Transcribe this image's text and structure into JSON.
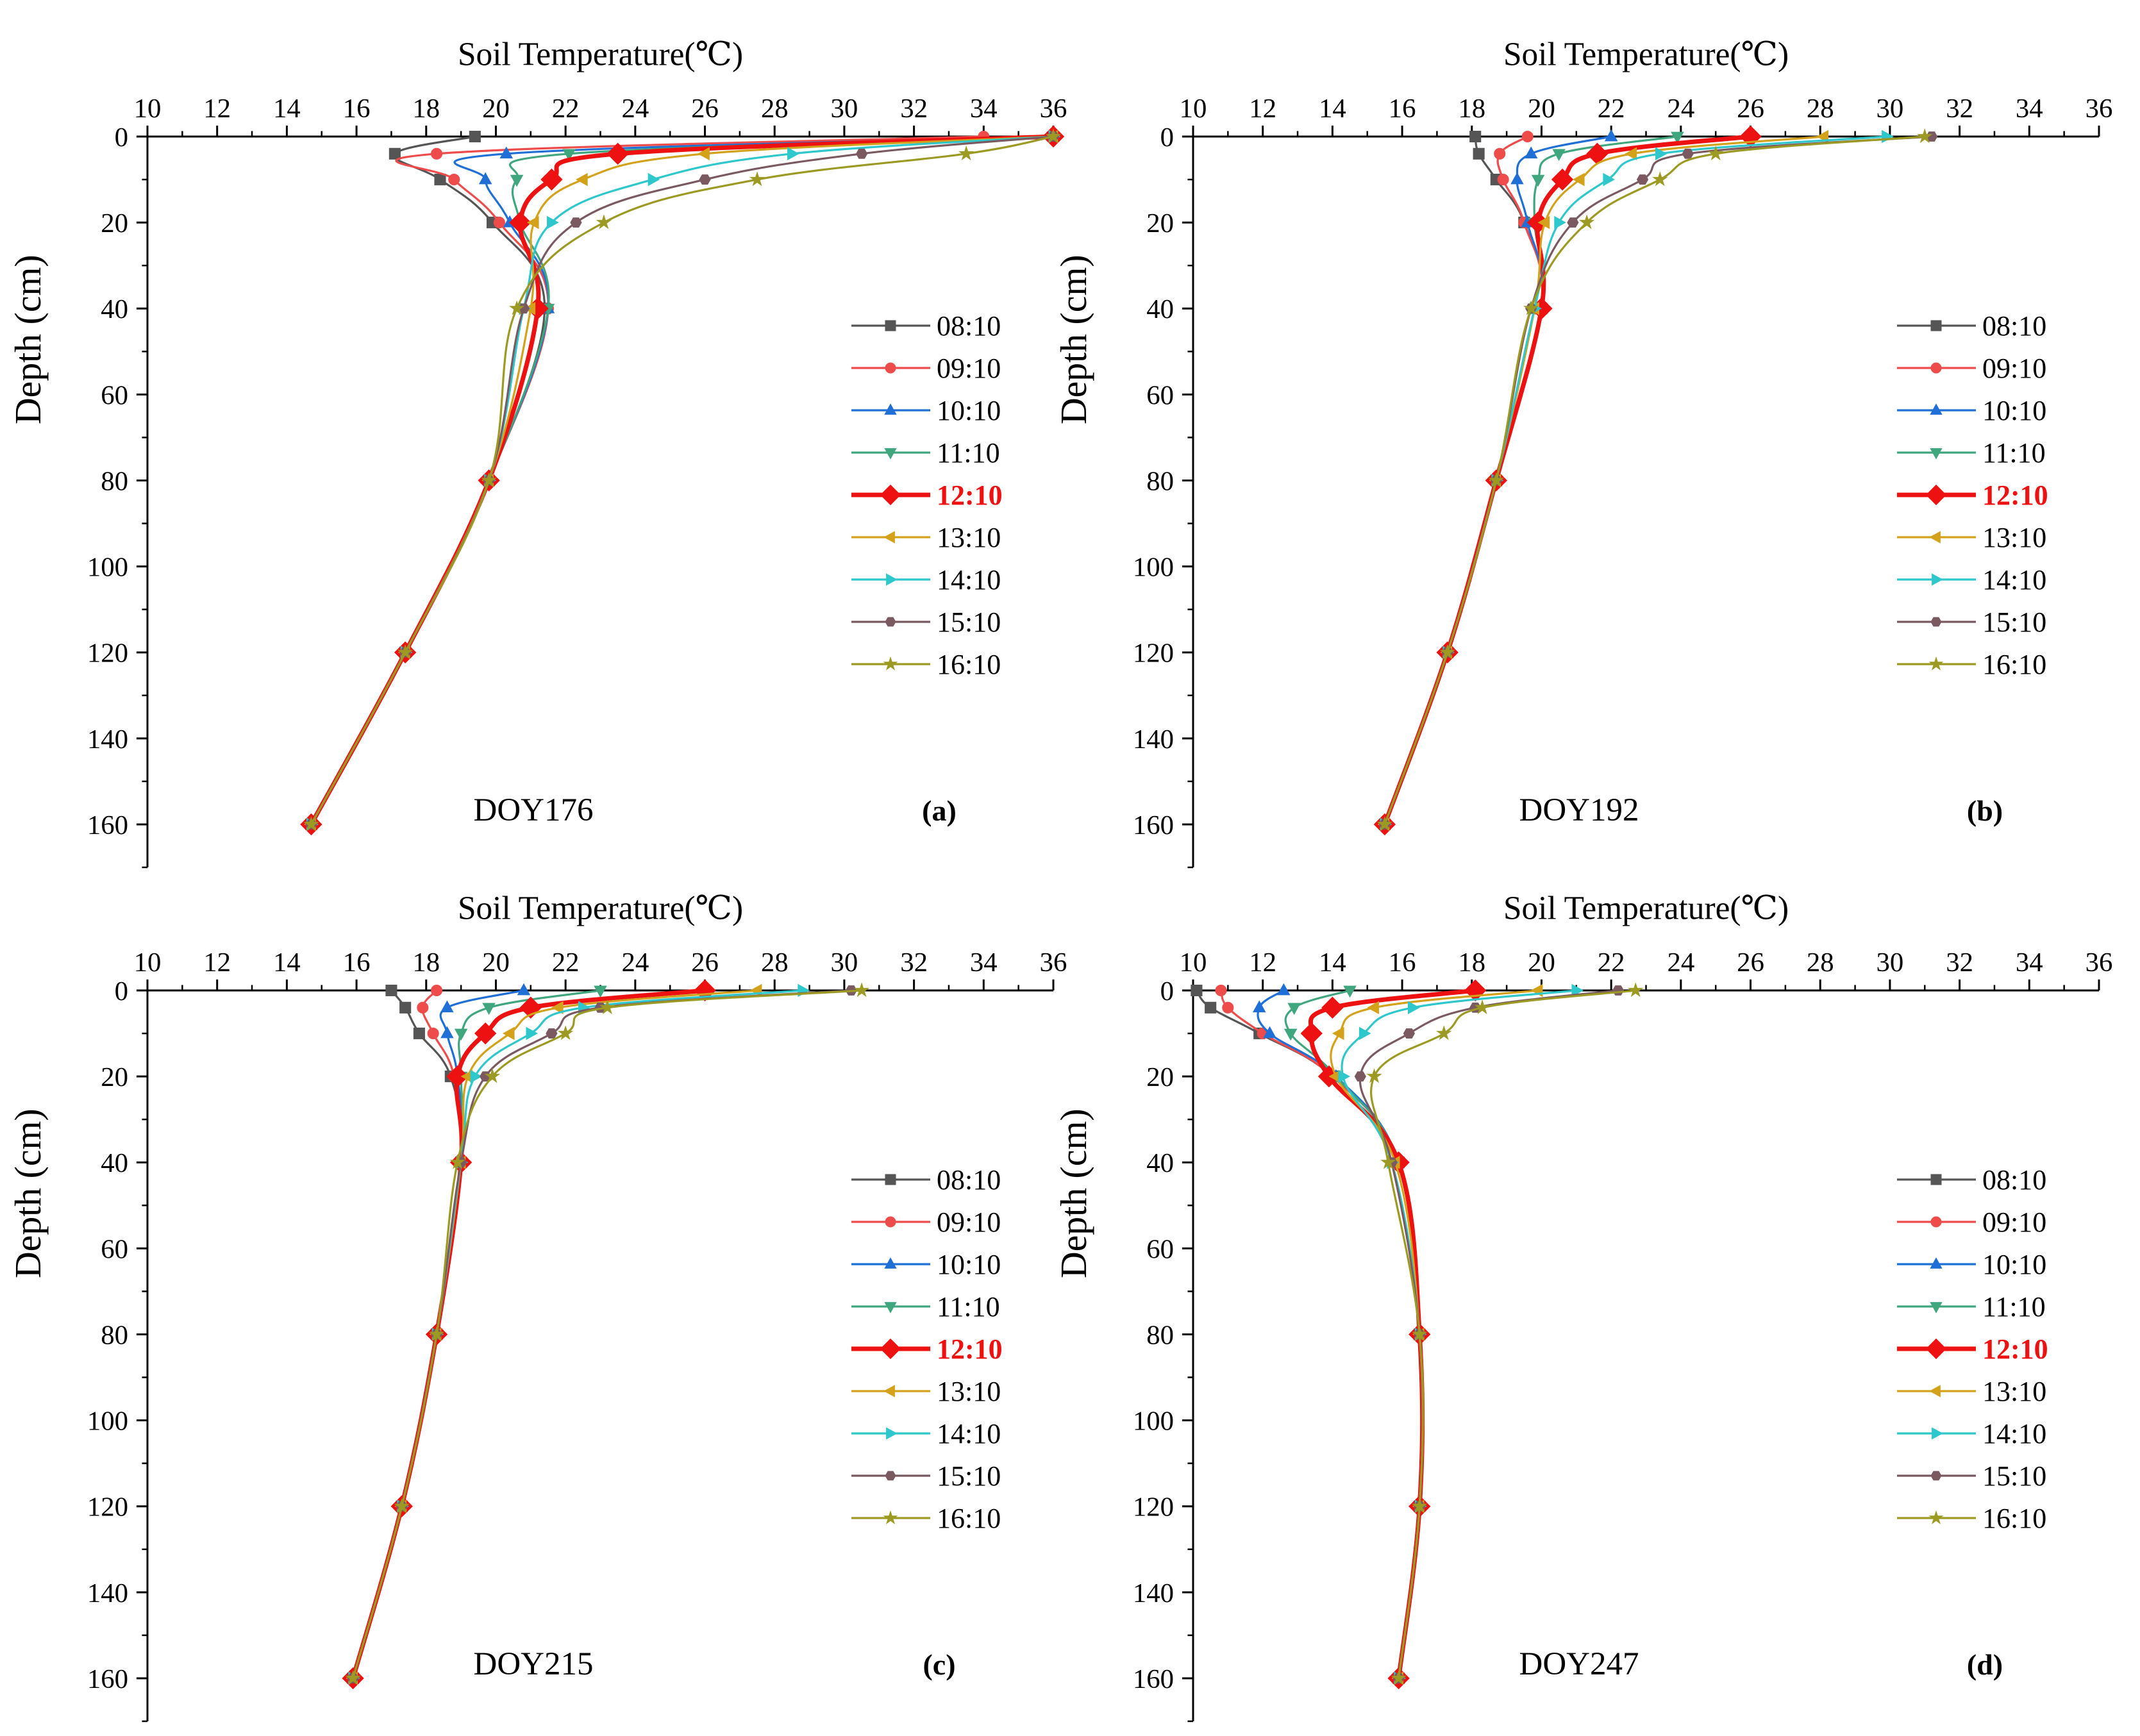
{
  "x_axis": {
    "title": "Soil Temperature(℃)",
    "min": 10,
    "max": 36,
    "ticks": [
      10,
      12,
      14,
      16,
      18,
      20,
      22,
      24,
      26,
      28,
      30,
      32,
      34,
      36
    ],
    "tick_labels": [
      "10",
      "12",
      "14",
      "16",
      "18",
      "20",
      "22",
      "24",
      "26",
      "28",
      "30",
      "32",
      "34",
      "36"
    ]
  },
  "y_axis": {
    "title": "Depth (cm)",
    "min": 0,
    "max": 170,
    "ticks": [
      0,
      20,
      40,
      60,
      80,
      100,
      120,
      140,
      160
    ],
    "tick_labels": [
      "0",
      "20",
      "40",
      "60",
      "80",
      "100",
      "120",
      "140",
      "160"
    ]
  },
  "legend": {
    "placement": "right",
    "entries": [
      "08:10",
      "09:10",
      "10:10",
      "11:10",
      "12:10",
      "13:10",
      "14:10",
      "15:10",
      "16:10"
    ]
  },
  "series_colors": [
    "#555555",
    "#ee4b4b",
    "#1f6fd6",
    "#3fa67e",
    "#ee1111",
    "#d4a21a",
    "#2ec7cc",
    "#7a5a60",
    "#9c9a22"
  ],
  "series_markers": [
    "square",
    "circle",
    "triangle-up",
    "triangle-down",
    "diamond",
    "triangle-left",
    "triangle-right",
    "hexagon",
    "star"
  ],
  "highlight_series": "12:10",
  "chart_data": [
    {
      "type": "line",
      "panel_label": "(a)",
      "day_label": "DOY176",
      "xlabel": "Soil Temperature(℃)",
      "ylabel": "Depth (cm)",
      "xlim": [
        10,
        36
      ],
      "ylim": [
        0,
        170
      ],
      "depths": [
        0,
        4,
        10,
        20,
        40,
        80,
        120,
        160
      ],
      "series": [
        {
          "name": "08:10",
          "values": [
            19.4,
            17.1,
            18.4,
            19.9,
            21.4,
            19.8,
            17.4,
            14.7
          ]
        },
        {
          "name": "09:10",
          "values": [
            34.0,
            18.3,
            18.8,
            20.1,
            21.5,
            19.8,
            17.4,
            14.7
          ]
        },
        {
          "name": "10:10",
          "values": [
            36.0,
            20.3,
            19.7,
            20.4,
            21.5,
            19.8,
            17.4,
            14.7
          ]
        },
        {
          "name": "11:10",
          "values": [
            36.0,
            22.1,
            20.6,
            20.7,
            21.5,
            19.8,
            17.4,
            14.7
          ]
        },
        {
          "name": "12:10",
          "values": [
            36.0,
            23.5,
            21.6,
            20.7,
            21.2,
            19.8,
            17.4,
            14.7
          ]
        },
        {
          "name": "13:10",
          "values": [
            36.0,
            26.0,
            22.5,
            21.1,
            21.0,
            19.8,
            17.4,
            14.7
          ]
        },
        {
          "name": "14:10",
          "values": [
            36.0,
            28.5,
            24.5,
            21.6,
            20.8,
            19.8,
            17.4,
            14.7
          ]
        },
        {
          "name": "15:10",
          "values": [
            36.0,
            30.5,
            26.0,
            22.3,
            20.8,
            19.8,
            17.4,
            14.7
          ]
        },
        {
          "name": "16:10",
          "values": [
            36.0,
            33.5,
            27.5,
            23.1,
            20.6,
            19.8,
            17.4,
            14.7
          ]
        }
      ]
    },
    {
      "type": "line",
      "panel_label": "(b)",
      "day_label": "DOY192",
      "xlabel": "Soil Temperature(℃)",
      "ylabel": "Depth (cm)",
      "xlim": [
        10,
        36
      ],
      "ylim": [
        0,
        170
      ],
      "depths": [
        0,
        4,
        10,
        20,
        40,
        80,
        120,
        160
      ],
      "series": [
        {
          "name": "08:10",
          "values": [
            18.1,
            18.2,
            18.7,
            19.5,
            20.0,
            18.7,
            17.3,
            15.5
          ]
        },
        {
          "name": "09:10",
          "values": [
            19.6,
            18.8,
            18.9,
            19.5,
            20.0,
            18.7,
            17.3,
            15.5
          ]
        },
        {
          "name": "10:10",
          "values": [
            22.0,
            19.7,
            19.3,
            19.6,
            20.0,
            18.7,
            17.3,
            15.5
          ]
        },
        {
          "name": "11:10",
          "values": [
            23.9,
            20.5,
            19.9,
            19.8,
            20.0,
            18.7,
            17.3,
            15.5
          ]
        },
        {
          "name": "12:10",
          "values": [
            26.0,
            21.6,
            20.6,
            19.9,
            20.0,
            18.7,
            17.3,
            15.5
          ]
        },
        {
          "name": "13:10",
          "values": [
            28.1,
            22.6,
            21.1,
            20.1,
            19.8,
            18.7,
            17.3,
            15.5
          ]
        },
        {
          "name": "14:10",
          "values": [
            29.9,
            23.4,
            21.9,
            20.5,
            19.8,
            18.7,
            17.3,
            15.5
          ]
        },
        {
          "name": "15:10",
          "values": [
            31.2,
            24.2,
            22.9,
            20.9,
            19.7,
            18.7,
            17.3,
            15.5
          ]
        },
        {
          "name": "16:10",
          "values": [
            31.0,
            25.0,
            23.4,
            21.3,
            19.7,
            18.7,
            17.3,
            15.5
          ]
        }
      ]
    },
    {
      "type": "line",
      "panel_label": "(c)",
      "day_label": "DOY215",
      "xlabel": "Soil Temperature(℃)",
      "ylabel": "Depth (cm)",
      "xlim": [
        10,
        36
      ],
      "ylim": [
        0,
        170
      ],
      "depths": [
        0,
        4,
        10,
        20,
        40,
        80,
        120,
        160
      ],
      "series": [
        {
          "name": "08:10",
          "values": [
            17.0,
            17.4,
            17.8,
            18.7,
            19.0,
            18.3,
            17.3,
            15.9
          ]
        },
        {
          "name": "09:10",
          "values": [
            18.3,
            17.9,
            18.2,
            18.8,
            19.0,
            18.3,
            17.3,
            15.9
          ]
        },
        {
          "name": "10:10",
          "values": [
            20.8,
            18.6,
            18.6,
            18.9,
            19.0,
            18.3,
            17.3,
            15.9
          ]
        },
        {
          "name": "11:10",
          "values": [
            23.0,
            19.8,
            19.0,
            19.0,
            19.0,
            18.3,
            17.3,
            15.9
          ]
        },
        {
          "name": "12:10",
          "values": [
            26.0,
            21.0,
            19.7,
            18.9,
            19.0,
            18.3,
            17.3,
            15.9
          ]
        },
        {
          "name": "13:10",
          "values": [
            27.5,
            21.8,
            20.4,
            19.2,
            19.0,
            18.3,
            17.3,
            15.9
          ]
        },
        {
          "name": "14:10",
          "values": [
            28.8,
            22.5,
            21.0,
            19.4,
            19.0,
            18.3,
            17.3,
            15.9
          ]
        },
        {
          "name": "15:10",
          "values": [
            30.2,
            23.0,
            21.6,
            19.7,
            19.0,
            18.3,
            17.3,
            15.9
          ]
        },
        {
          "name": "16:10",
          "values": [
            30.5,
            23.2,
            22.0,
            19.9,
            18.9,
            18.3,
            17.3,
            15.9
          ]
        }
      ]
    },
    {
      "type": "line",
      "panel_label": "(d)",
      "day_label": "DOY247",
      "xlabel": "Soil Temperature(℃)",
      "ylabel": "Depth (cm)",
      "xlim": [
        10,
        36
      ],
      "ylim": [
        0,
        170
      ],
      "depths": [
        0,
        4,
        10,
        20,
        40,
        80,
        120,
        160
      ],
      "series": [
        {
          "name": "08:10",
          "values": [
            10.1,
            10.5,
            11.9,
            14.0,
            15.9,
            16.5,
            16.5,
            15.9
          ]
        },
        {
          "name": "09:10",
          "values": [
            10.8,
            11.0,
            12.0,
            14.0,
            15.9,
            16.5,
            16.5,
            15.9
          ]
        },
        {
          "name": "10:10",
          "values": [
            12.6,
            11.9,
            12.2,
            14.1,
            15.9,
            16.5,
            16.5,
            15.9
          ]
        },
        {
          "name": "11:10",
          "values": [
            14.5,
            12.9,
            12.8,
            14.1,
            15.9,
            16.5,
            16.5,
            15.9
          ]
        },
        {
          "name": "12:10",
          "values": [
            18.1,
            14.0,
            13.4,
            13.9,
            15.9,
            16.5,
            16.5,
            15.9
          ]
        },
        {
          "name": "13:10",
          "values": [
            19.9,
            15.2,
            14.2,
            14.1,
            15.8,
            16.5,
            16.5,
            15.9
          ]
        },
        {
          "name": "14:10",
          "values": [
            21.0,
            16.3,
            14.9,
            14.3,
            15.7,
            16.5,
            16.5,
            15.9
          ]
        },
        {
          "name": "15:10",
          "values": [
            22.2,
            18.1,
            16.2,
            14.8,
            15.7,
            16.5,
            16.5,
            15.9
          ]
        },
        {
          "name": "16:10",
          "values": [
            22.7,
            18.3,
            17.2,
            15.2,
            15.6,
            16.5,
            16.5,
            15.9
          ]
        }
      ]
    }
  ]
}
